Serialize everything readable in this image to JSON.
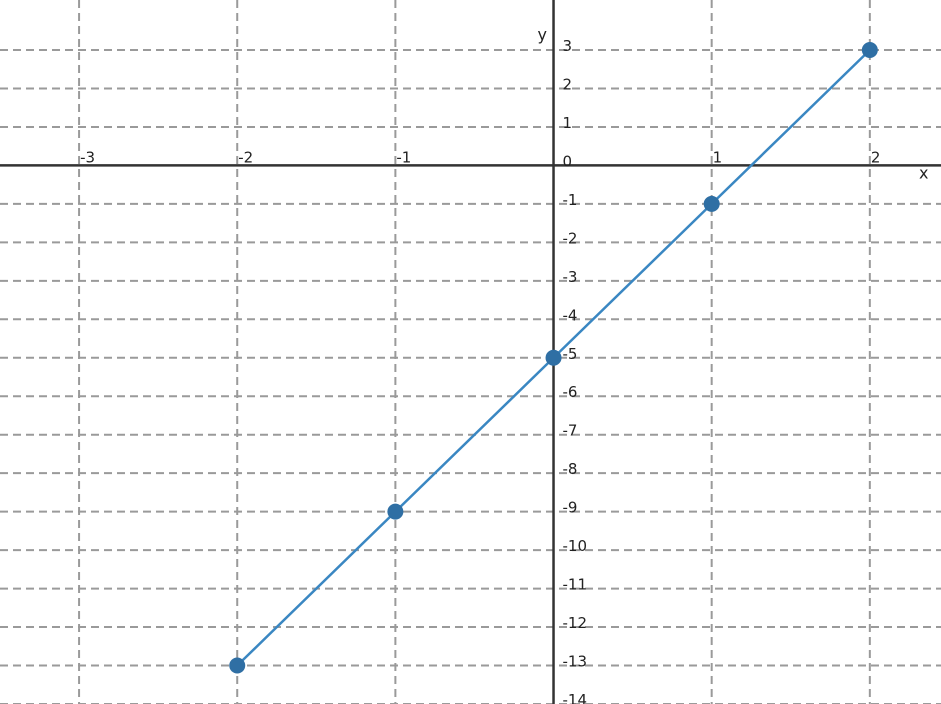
{
  "chart_data": {
    "type": "line",
    "title": "",
    "xlabel": "x",
    "ylabel": "y",
    "xlim": [
      -3.5,
      2.45
    ],
    "ylim": [
      -14.0,
      4.3
    ],
    "grid": true,
    "x_ticks": [
      -3,
      -2,
      -1,
      0,
      1,
      2
    ],
    "y_ticks": [
      3,
      2,
      1,
      0,
      -1,
      -2,
      -3,
      -4,
      -5,
      -6,
      -7,
      -8,
      -9,
      -10,
      -11,
      -12,
      -13,
      -14
    ],
    "series": [
      {
        "color": "#3a87c2",
        "marker_color": "#2f6fa4",
        "points": [
          {
            "x": -2,
            "y": -13
          },
          {
            "x": -1,
            "y": -9
          },
          {
            "x": 0,
            "y": -5
          },
          {
            "x": 1,
            "y": -1
          },
          {
            "x": 2,
            "y": 3
          }
        ]
      }
    ]
  }
}
